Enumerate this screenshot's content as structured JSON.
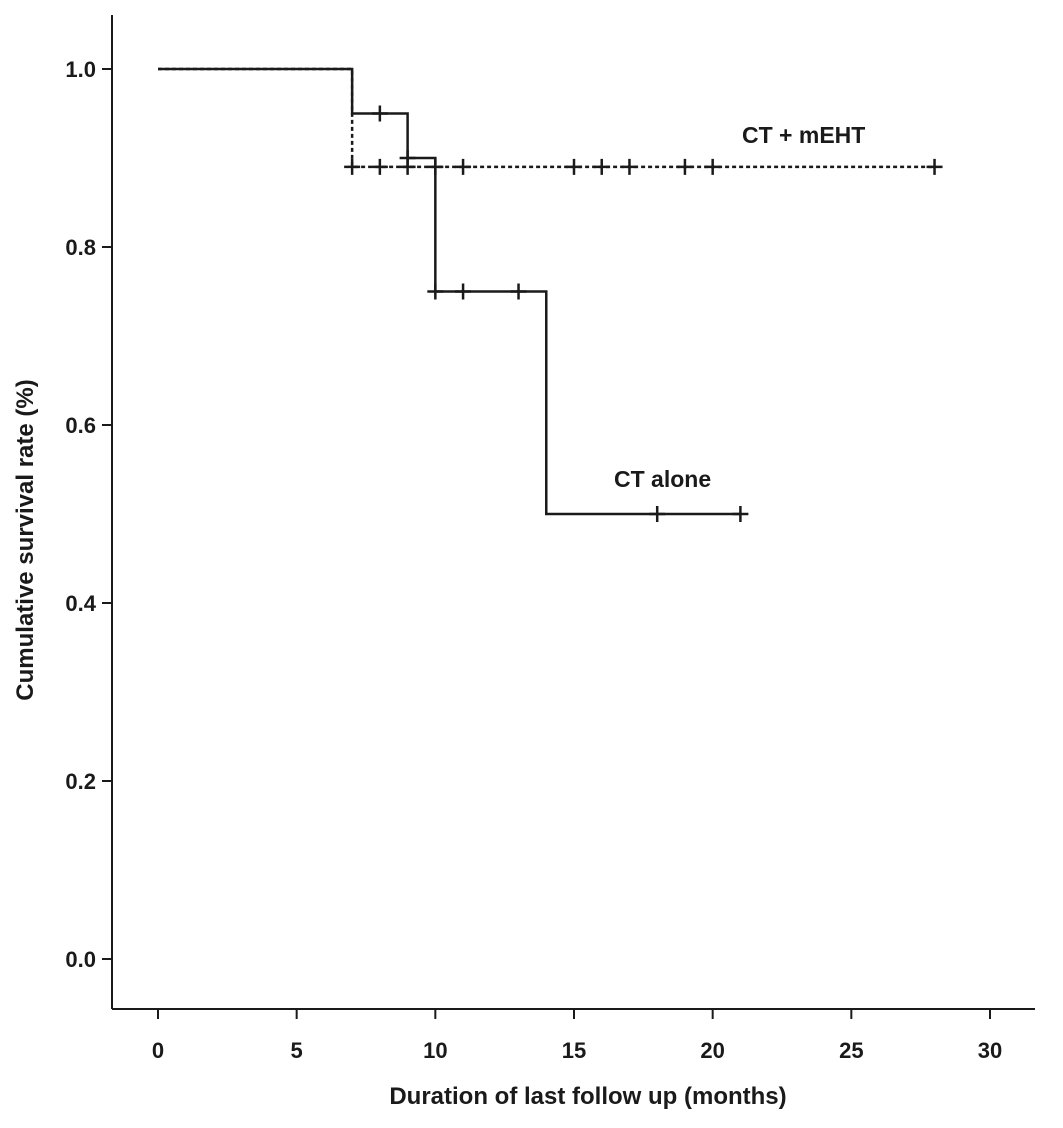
{
  "chart_data": {
    "type": "line",
    "subtype": "kaplan-meier step curve",
    "xlabel": "Duration of last follow up (months)",
    "ylabel": "Cumulative survival rate (%)",
    "xlim": [
      0,
      30
    ],
    "ylim": [
      0.0,
      1.0
    ],
    "xticks": [
      0,
      5,
      10,
      15,
      20,
      25,
      30
    ],
    "xtick_labels": [
      "0",
      "5",
      "10",
      "15",
      "20",
      "25",
      "30"
    ],
    "yticks": [
      0.0,
      0.2,
      0.4,
      0.6,
      0.8,
      1.0
    ],
    "ytick_labels": [
      "0.0",
      "0.2",
      "0.4",
      "0.6",
      "0.8",
      "1.0"
    ],
    "grid": false,
    "colors": {
      "axis": "#1a1a1a",
      "series": "#1a1a1a"
    },
    "series": [
      {
        "name": "CT alone",
        "line_style": "solid",
        "steps": [
          [
            0,
            1.0
          ],
          [
            7,
            0.95
          ],
          [
            9,
            0.9
          ],
          [
            10,
            0.75
          ],
          [
            14,
            0.5
          ],
          [
            21,
            0.5
          ]
        ],
        "censored": [
          [
            8,
            0.95
          ],
          [
            9,
            0.9
          ],
          [
            10,
            0.75
          ],
          [
            11,
            0.75
          ],
          [
            13,
            0.75
          ],
          [
            18,
            0.5
          ],
          [
            21,
            0.5
          ]
        ]
      },
      {
        "name": "CT + mEHT",
        "line_style": "dashed",
        "steps": [
          [
            0,
            1.0
          ],
          [
            7,
            0.89
          ],
          [
            28,
            0.89
          ]
        ],
        "censored": [
          [
            7,
            0.89
          ],
          [
            8,
            0.89
          ],
          [
            9,
            0.89
          ],
          [
            10,
            0.89
          ],
          [
            11,
            0.89
          ],
          [
            15,
            0.89
          ],
          [
            16,
            0.89
          ],
          [
            17,
            0.89
          ],
          [
            19,
            0.89
          ],
          [
            20,
            0.89
          ],
          [
            28,
            0.89
          ]
        ]
      }
    ]
  }
}
